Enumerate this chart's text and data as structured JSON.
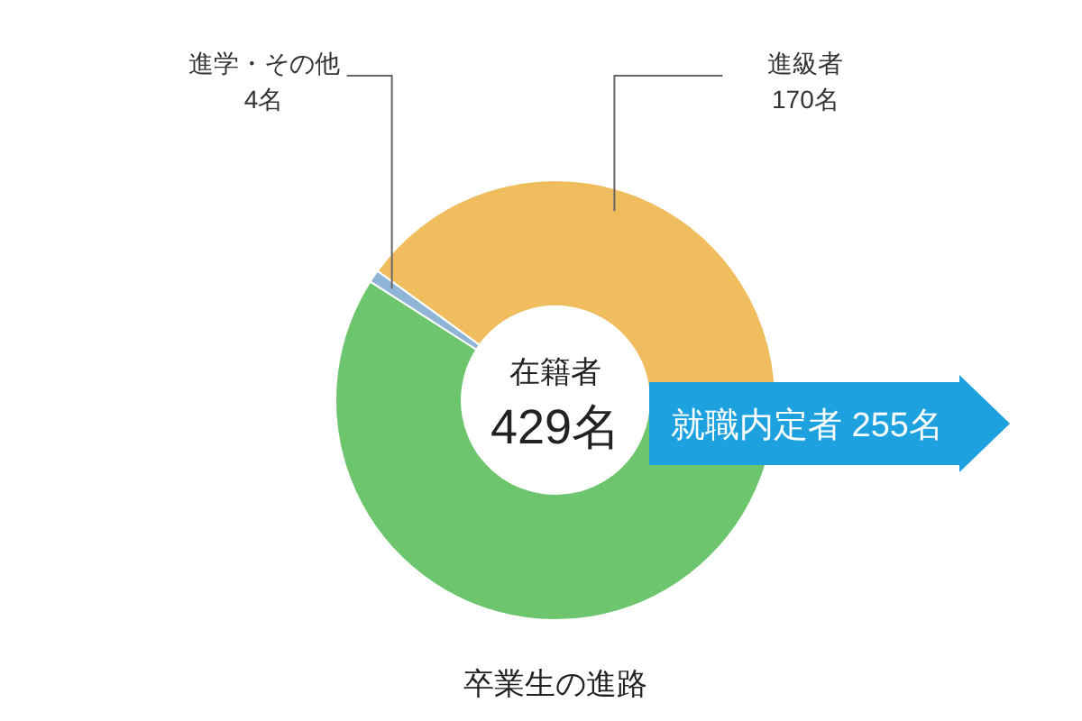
{
  "chart_data": {
    "type": "donut",
    "title": "卒業生の進路",
    "categories": [
      "進級者",
      "就職内定者",
      "進学・その他"
    ],
    "values": [
      170,
      255,
      4
    ],
    "value_labels": [
      "170名",
      "255名",
      "4名"
    ],
    "colors": [
      "#f0bd5e",
      "#6dc56e",
      "#8fb4d6"
    ],
    "annotations": [
      "在籍者",
      "429名"
    ]
  }
}
